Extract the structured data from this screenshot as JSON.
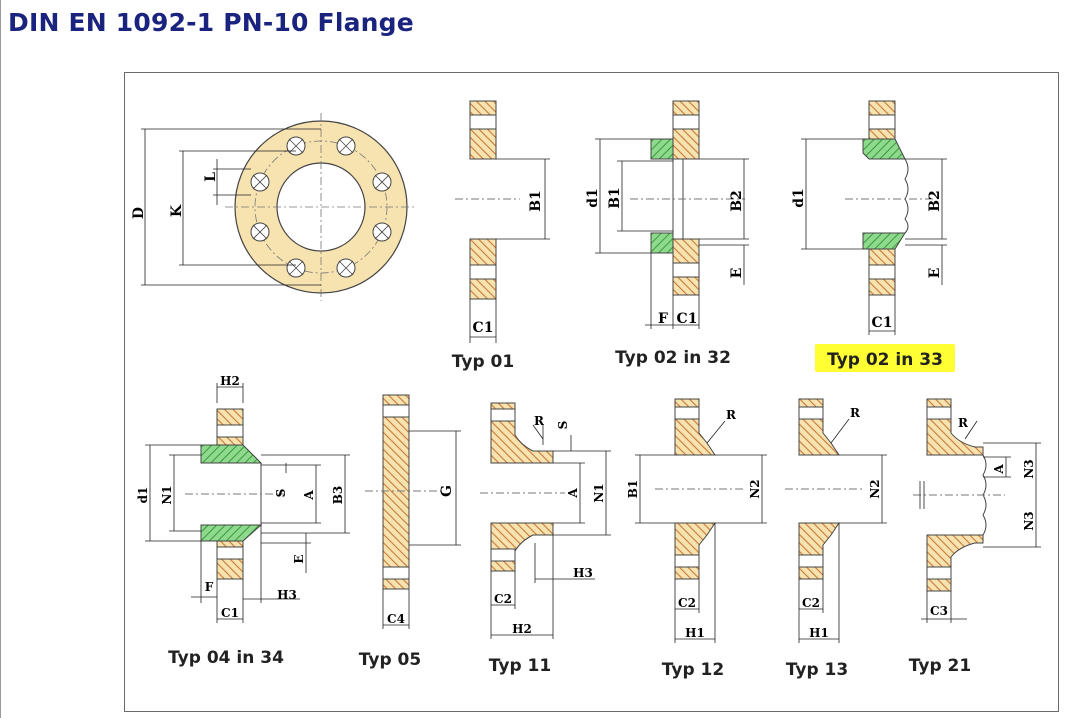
{
  "page": {
    "title": "DIN EN 1092-1 PN-10 Flange"
  },
  "types": [
    {
      "caption": "Typ 01",
      "highlighted": false
    },
    {
      "caption": "Typ 02 in 32",
      "highlighted": false
    },
    {
      "caption": "Typ 02 in 33",
      "highlighted": true
    },
    {
      "caption": "Typ 04 in 34",
      "highlighted": false
    },
    {
      "caption": "Typ 05",
      "highlighted": false
    },
    {
      "caption": "Typ 11",
      "highlighted": false
    },
    {
      "caption": "Typ 12",
      "highlighted": false
    },
    {
      "caption": "Typ 13",
      "highlighted": false
    },
    {
      "caption": "Typ 21",
      "highlighted": false
    }
  ],
  "dims": {
    "D": "D",
    "K": "K",
    "L": "L",
    "B1": "B1",
    "B2": "B2",
    "B3": "B3",
    "C1": "C1",
    "C2": "C2",
    "C3": "C3",
    "C4": "C4",
    "d1": "d1",
    "E": "E",
    "F": "F",
    "G": "G",
    "H1": "H1",
    "H2": "H2",
    "H3": "H3",
    "N1": "N1",
    "N2": "N2",
    "N3": "N3",
    "R": "R",
    "S": "S",
    "A": "A"
  },
  "colors": {
    "title": "#1a237e",
    "hatch": "#c87a3a",
    "fill": "#f7e3b0",
    "weld": "#5fbf5f",
    "highlight": "#ffff33"
  }
}
